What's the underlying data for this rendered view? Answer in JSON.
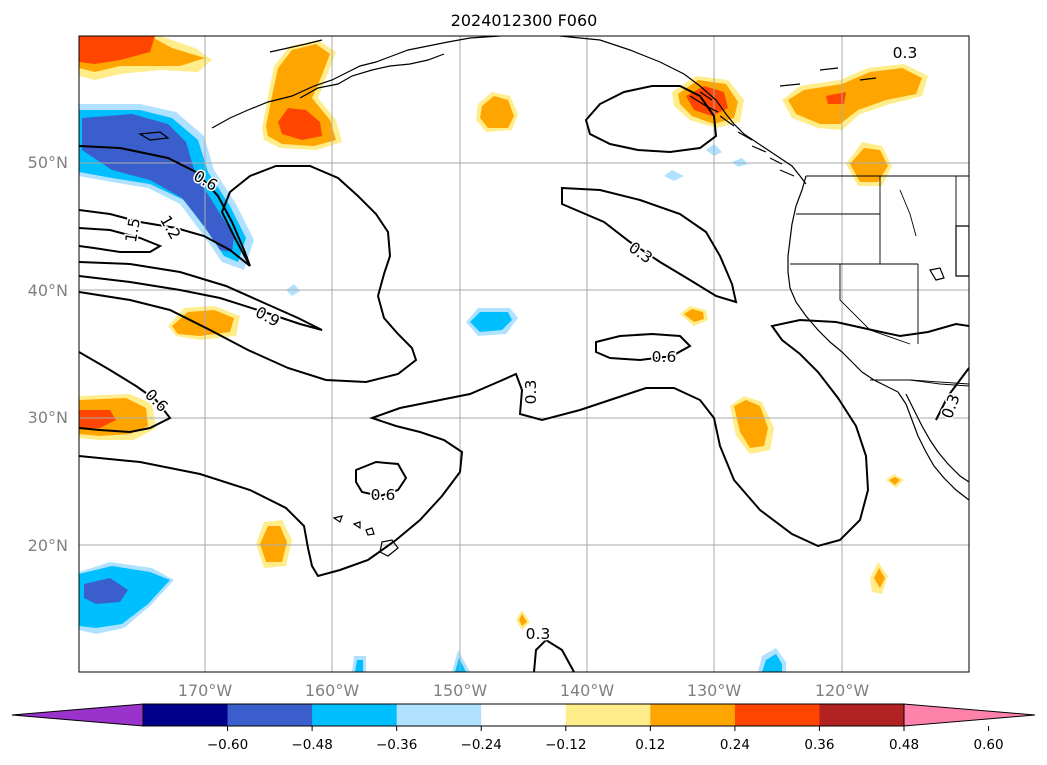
{
  "title": "2024012300 F060",
  "map": {
    "lat_ticks": [
      {
        "value": 50,
        "label": "50°N"
      },
      {
        "value": 40,
        "label": "40°N"
      },
      {
        "value": 30,
        "label": "30°N"
      },
      {
        "value": 20,
        "label": "20°N"
      }
    ],
    "lon_ticks": [
      {
        "value": -170,
        "label": "170°W"
      },
      {
        "value": -160,
        "label": "160°W"
      },
      {
        "value": -150,
        "label": "150°W"
      },
      {
        "value": -140,
        "label": "140°W"
      },
      {
        "value": -130,
        "label": "130°W"
      },
      {
        "value": -120,
        "label": "120°W"
      }
    ],
    "contour_labels": [
      "0.3",
      "0.6",
      "0.9",
      "1.2",
      "1.5",
      "0.6",
      "0.3",
      "0.6",
      "0.3",
      "0.6",
      "0.3",
      "0.3",
      "0.6",
      "0.3"
    ],
    "grid": true
  },
  "colorbar": {
    "tick_labels": [
      "−0.60",
      "−0.48",
      "−0.36",
      "−0.24",
      "−0.12",
      "0.12",
      "0.24",
      "0.36",
      "0.48",
      "0.60"
    ],
    "colors": [
      "#9933cc",
      "#00008b",
      "#3a5fcd",
      "#00bfff",
      "#b0e2ff",
      "#ffffff",
      "#ffec8b",
      "#ffa500",
      "#ff4500",
      "#b22222",
      "#ff82ab"
    ]
  },
  "colors": {
    "pos_1": "#ffec8b",
    "pos_2": "#ffa500",
    "pos_3": "#ff4500",
    "neg_1": "#b0e2ff",
    "neg_2": "#00bfff",
    "neg_3": "#3a5fcd"
  }
}
